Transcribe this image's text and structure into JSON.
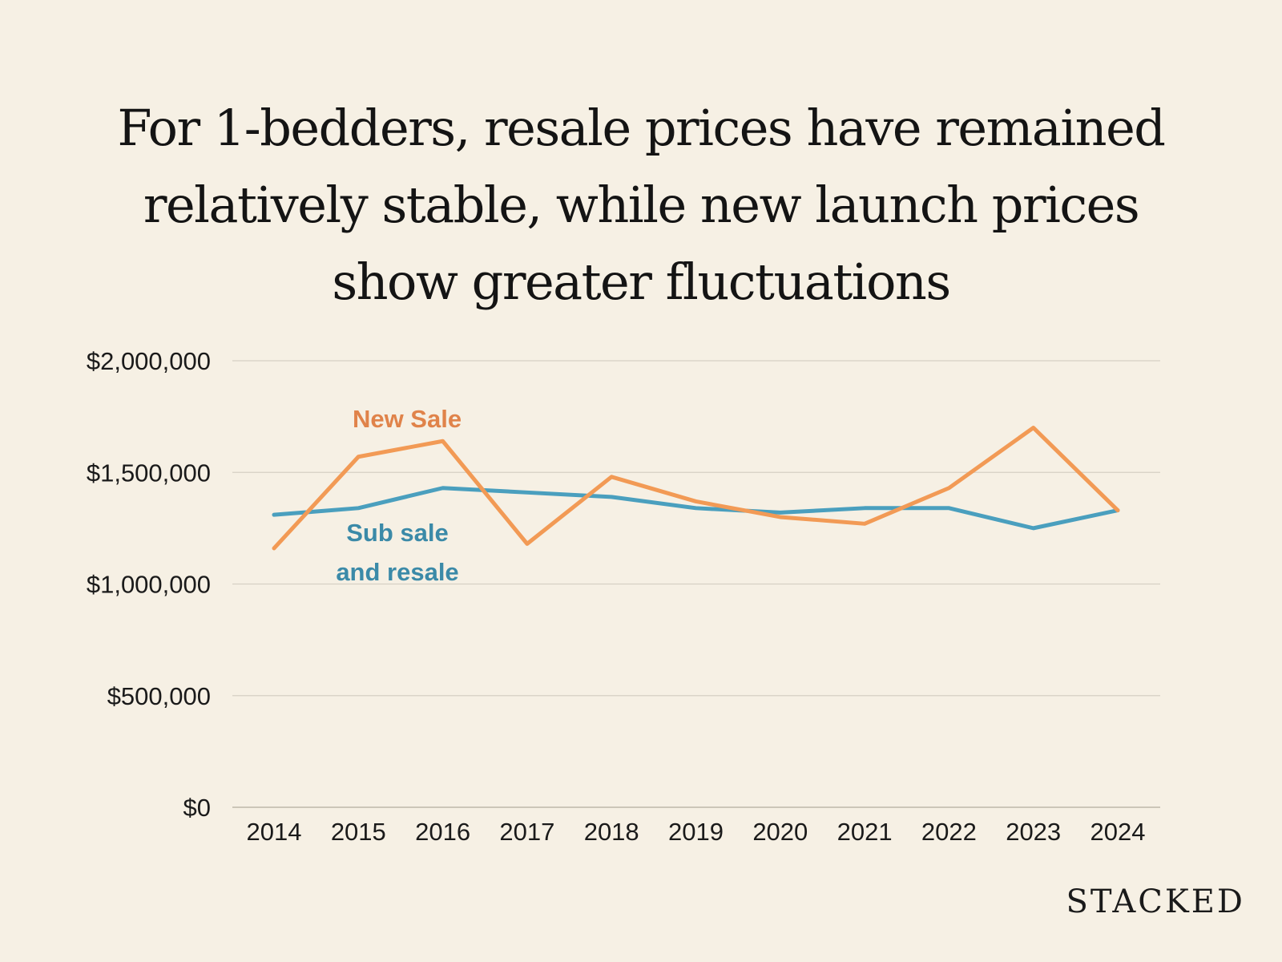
{
  "chart_data": {
    "type": "line",
    "title": [
      "For 1-bedders, resale prices have remained",
      "relatively stable, while new launch prices",
      "show greater fluctuations"
    ],
    "categories": [
      "2014",
      "2015",
      "2016",
      "2017",
      "2018",
      "2019",
      "2020",
      "2021",
      "2022",
      "2023",
      "2024"
    ],
    "series": [
      {
        "name": "New Sale",
        "color": "#f29a55",
        "label_color": "#e0834a",
        "values": [
          1160000,
          1570000,
          1640000,
          1180000,
          1480000,
          1370000,
          1300000,
          1270000,
          1430000,
          1700000,
          1330000
        ]
      },
      {
        "name": "Sub sale and resale",
        "label_lines": [
          "Sub sale",
          "and resale"
        ],
        "color": "#4a9fbe",
        "label_color": "#3b8aa8",
        "values": [
          1310000,
          1340000,
          1430000,
          1410000,
          1390000,
          1340000,
          1320000,
          1340000,
          1340000,
          1250000,
          1330000
        ]
      }
    ],
    "y_ticks": [
      {
        "value": 0,
        "label": "$0"
      },
      {
        "value": 500000,
        "label": "$500,000"
      },
      {
        "value": 1000000,
        "label": "$1,000,000"
      },
      {
        "value": 1500000,
        "label": "$1,500,000"
      },
      {
        "value": 2000000,
        "label": "$2,000,000"
      }
    ],
    "ylim": [
      0,
      2000000
    ],
    "xlabel": "",
    "ylabel": "",
    "grid": true,
    "gridline_color": "#d6d0c4",
    "legend": "inline-labels"
  },
  "brand": "STACKED"
}
